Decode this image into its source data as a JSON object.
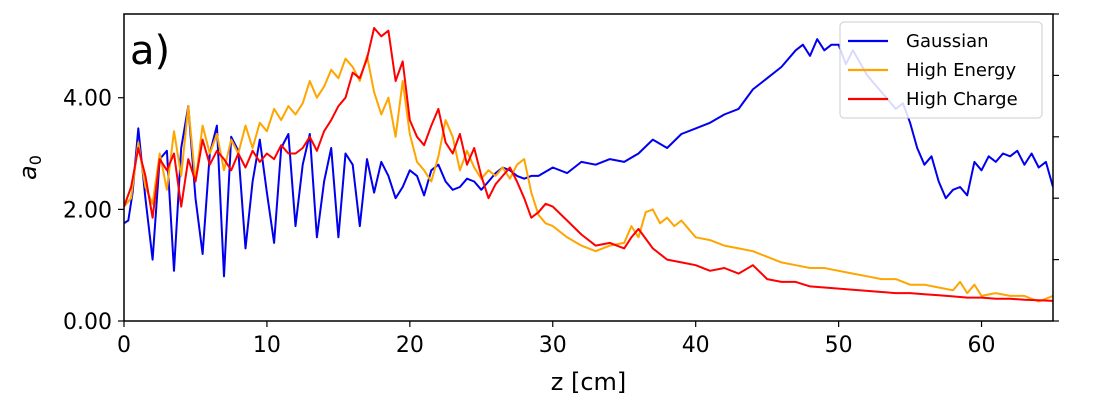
{
  "chart_data": {
    "type": "line",
    "panel_label": "a)",
    "xlabel": "z [cm]",
    "ylabel": "a",
    "ylabel_subscript": "0",
    "xlim": [
      0,
      65
    ],
    "ylim": [
      0,
      5.5
    ],
    "xticks": [
      0,
      10,
      20,
      30,
      40,
      50,
      60
    ],
    "xtick_labels": [
      "0",
      "10",
      "20",
      "30",
      "40",
      "50",
      "60"
    ],
    "yticks": [
      0,
      2,
      4
    ],
    "ytick_labels": [
      "0.00",
      "2.00",
      "4.00"
    ],
    "grid": false,
    "legend_position": "top-right",
    "series": [
      {
        "name": "Gaussian",
        "color": "#0000ee",
        "x": [
          0,
          0.3,
          0.6,
          1.0,
          1.5,
          2.0,
          2.5,
          3.0,
          3.5,
          4.0,
          4.5,
          5.0,
          5.5,
          6.0,
          6.5,
          7.0,
          7.5,
          8.0,
          8.5,
          9.0,
          9.5,
          10.0,
          10.5,
          11.0,
          11.5,
          12.0,
          12.5,
          13.0,
          13.5,
          14.0,
          14.5,
          15.0,
          15.5,
          16.0,
          16.5,
          17.0,
          17.5,
          18.0,
          18.5,
          19.0,
          19.5,
          20.0,
          20.5,
          21.0,
          21.5,
          22.0,
          22.5,
          23.0,
          23.5,
          24.0,
          24.5,
          25.0,
          25.5,
          26.0,
          26.5,
          27.0,
          27.5,
          28.0,
          28.5,
          29.0,
          30.0,
          31.0,
          32.0,
          33.0,
          34.0,
          35.0,
          36.0,
          37.0,
          38.0,
          39.0,
          40.0,
          41.0,
          42.0,
          43.0,
          44.0,
          45.0,
          46.0,
          47.0,
          47.5,
          48.0,
          48.5,
          49.0,
          49.5,
          50.0,
          50.5,
          51.0,
          52.0,
          53.0,
          54.0,
          54.5,
          55.0,
          55.5,
          56.0,
          56.5,
          57.0,
          57.5,
          58.0,
          58.5,
          59.0,
          59.5,
          60.0,
          60.5,
          61.0,
          61.5,
          62.0,
          62.5,
          63.0,
          63.5,
          64.0,
          64.5,
          65.0
        ],
        "y": [
          1.75,
          1.8,
          2.3,
          3.45,
          2.2,
          1.1,
          2.9,
          3.05,
          0.9,
          3.1,
          3.85,
          2.2,
          1.2,
          3.0,
          3.5,
          0.8,
          3.3,
          3.05,
          1.3,
          2.5,
          3.25,
          2.3,
          1.4,
          3.1,
          3.35,
          1.7,
          2.8,
          3.35,
          1.5,
          2.5,
          3.1,
          1.5,
          3.0,
          2.8,
          1.7,
          2.9,
          2.3,
          2.85,
          2.6,
          2.2,
          2.4,
          2.7,
          2.6,
          2.25,
          2.7,
          2.8,
          2.5,
          2.35,
          2.4,
          2.55,
          2.5,
          2.35,
          2.5,
          2.65,
          2.75,
          2.7,
          2.6,
          2.55,
          2.6,
          2.6,
          2.75,
          2.65,
          2.85,
          2.8,
          2.9,
          2.85,
          3.0,
          3.25,
          3.1,
          3.35,
          3.45,
          3.55,
          3.7,
          3.8,
          4.15,
          4.35,
          4.55,
          4.85,
          4.95,
          4.75,
          5.05,
          4.85,
          4.95,
          4.95,
          4.6,
          4.85,
          4.4,
          4.1,
          3.8,
          3.9,
          3.55,
          3.1,
          2.8,
          2.95,
          2.5,
          2.2,
          2.35,
          2.4,
          2.25,
          2.85,
          2.7,
          2.95,
          2.85,
          3.0,
          2.95,
          3.05,
          2.8,
          3.0,
          2.75,
          2.85,
          2.4
        ]
      },
      {
        "name": "High Energy",
        "color": "#ffa500",
        "x": [
          0,
          0.5,
          1.0,
          1.5,
          2.0,
          2.5,
          3.0,
          3.5,
          4.0,
          4.5,
          5.0,
          5.5,
          6.0,
          6.5,
          7.0,
          7.5,
          8.0,
          8.5,
          9.0,
          9.5,
          10.0,
          10.5,
          11.0,
          11.5,
          12.0,
          12.5,
          13.0,
          13.5,
          14.0,
          14.5,
          15.0,
          15.5,
          16.0,
          16.5,
          17.0,
          17.5,
          18.0,
          18.5,
          19.0,
          19.5,
          20.0,
          20.5,
          21.0,
          21.5,
          22.0,
          22.5,
          23.0,
          23.5,
          24.0,
          24.5,
          25.0,
          25.5,
          26.0,
          26.5,
          27.0,
          27.5,
          28.0,
          28.5,
          29.0,
          29.5,
          30.0,
          31.0,
          32.0,
          33.0,
          34.0,
          35.0,
          35.5,
          36.0,
          36.5,
          37.0,
          37.5,
          38.0,
          38.5,
          39.0,
          40.0,
          41.0,
          42.0,
          43.0,
          44.0,
          45.0,
          46.0,
          47.0,
          48.0,
          49.0,
          50.0,
          51.0,
          52.0,
          53.0,
          54.0,
          55.0,
          56.0,
          57.0,
          58.0,
          58.5,
          59.0,
          59.5,
          60.0,
          61.0,
          62.0,
          63.0,
          64.0,
          65.0
        ],
        "y": [
          2.05,
          2.2,
          3.2,
          2.4,
          2.1,
          3.0,
          2.35,
          3.4,
          2.6,
          3.85,
          2.5,
          3.5,
          3.0,
          3.35,
          2.7,
          3.25,
          3.0,
          3.5,
          3.1,
          3.55,
          3.4,
          3.8,
          3.6,
          3.85,
          3.7,
          3.9,
          4.3,
          4.0,
          4.2,
          4.5,
          4.35,
          4.7,
          4.55,
          4.3,
          4.75,
          4.1,
          3.7,
          4.0,
          3.3,
          4.3,
          3.35,
          2.85,
          2.7,
          2.5,
          2.95,
          3.6,
          3.3,
          2.7,
          3.05,
          2.75,
          2.55,
          2.7,
          2.6,
          2.75,
          2.55,
          2.8,
          2.9,
          2.3,
          1.9,
          1.75,
          1.7,
          1.5,
          1.35,
          1.25,
          1.35,
          1.4,
          1.7,
          1.5,
          1.95,
          2.0,
          1.75,
          1.85,
          1.7,
          1.8,
          1.5,
          1.45,
          1.35,
          1.3,
          1.25,
          1.15,
          1.05,
          1.0,
          0.95,
          0.95,
          0.9,
          0.85,
          0.8,
          0.75,
          0.75,
          0.65,
          0.65,
          0.6,
          0.55,
          0.7,
          0.5,
          0.65,
          0.45,
          0.5,
          0.45,
          0.45,
          0.35,
          0.45
        ]
      },
      {
        "name": "High Charge",
        "color": "#ff0000",
        "x": [
          0,
          0.5,
          1.0,
          1.5,
          2.0,
          2.5,
          3.0,
          3.5,
          4.0,
          4.5,
          5.0,
          5.5,
          6.0,
          6.5,
          7.0,
          7.5,
          8.0,
          8.5,
          9.0,
          9.5,
          10.0,
          10.5,
          11.0,
          11.5,
          12.0,
          12.5,
          13.0,
          13.5,
          14.0,
          14.5,
          15.0,
          15.5,
          16.0,
          16.5,
          17.0,
          17.5,
          18.0,
          18.5,
          19.0,
          19.5,
          20.0,
          20.5,
          21.0,
          21.5,
          22.0,
          22.5,
          23.0,
          23.5,
          24.0,
          24.5,
          25.0,
          25.5,
          26.0,
          26.5,
          27.0,
          27.5,
          28.0,
          28.5,
          29.0,
          29.5,
          30.0,
          31.0,
          32.0,
          33.0,
          34.0,
          35.0,
          35.5,
          36.0,
          37.0,
          38.0,
          39.0,
          40.0,
          41.0,
          42.0,
          43.0,
          44.0,
          45.0,
          46.0,
          47.0,
          48.0,
          49.0,
          50.0,
          51.0,
          52.0,
          53.0,
          54.0,
          55.0,
          56.0,
          57.0,
          58.0,
          59.0,
          60.0,
          61.0,
          62.0,
          63.0,
          64.0,
          65.0
        ],
        "y": [
          2.05,
          2.4,
          3.1,
          2.6,
          1.85,
          2.9,
          2.7,
          3.0,
          2.05,
          2.9,
          2.5,
          3.25,
          2.8,
          3.05,
          2.9,
          2.7,
          3.0,
          2.75,
          3.05,
          2.85,
          3.0,
          2.9,
          3.15,
          3.0,
          3.0,
          3.1,
          3.3,
          3.05,
          3.4,
          3.6,
          3.85,
          4.0,
          4.45,
          4.35,
          4.7,
          5.25,
          5.1,
          5.2,
          4.3,
          4.65,
          3.6,
          3.3,
          3.15,
          3.5,
          3.8,
          3.2,
          3.0,
          3.35,
          2.8,
          3.1,
          2.6,
          2.2,
          2.45,
          2.6,
          2.75,
          2.5,
          2.2,
          1.85,
          1.95,
          2.1,
          2.05,
          1.8,
          1.55,
          1.35,
          1.4,
          1.3,
          1.5,
          1.65,
          1.3,
          1.1,
          1.05,
          1.0,
          0.9,
          0.95,
          0.85,
          1.0,
          0.75,
          0.7,
          0.7,
          0.62,
          0.6,
          0.58,
          0.56,
          0.54,
          0.52,
          0.5,
          0.5,
          0.48,
          0.46,
          0.44,
          0.42,
          0.42,
          0.4,
          0.4,
          0.38,
          0.37,
          0.36
        ]
      }
    ]
  }
}
